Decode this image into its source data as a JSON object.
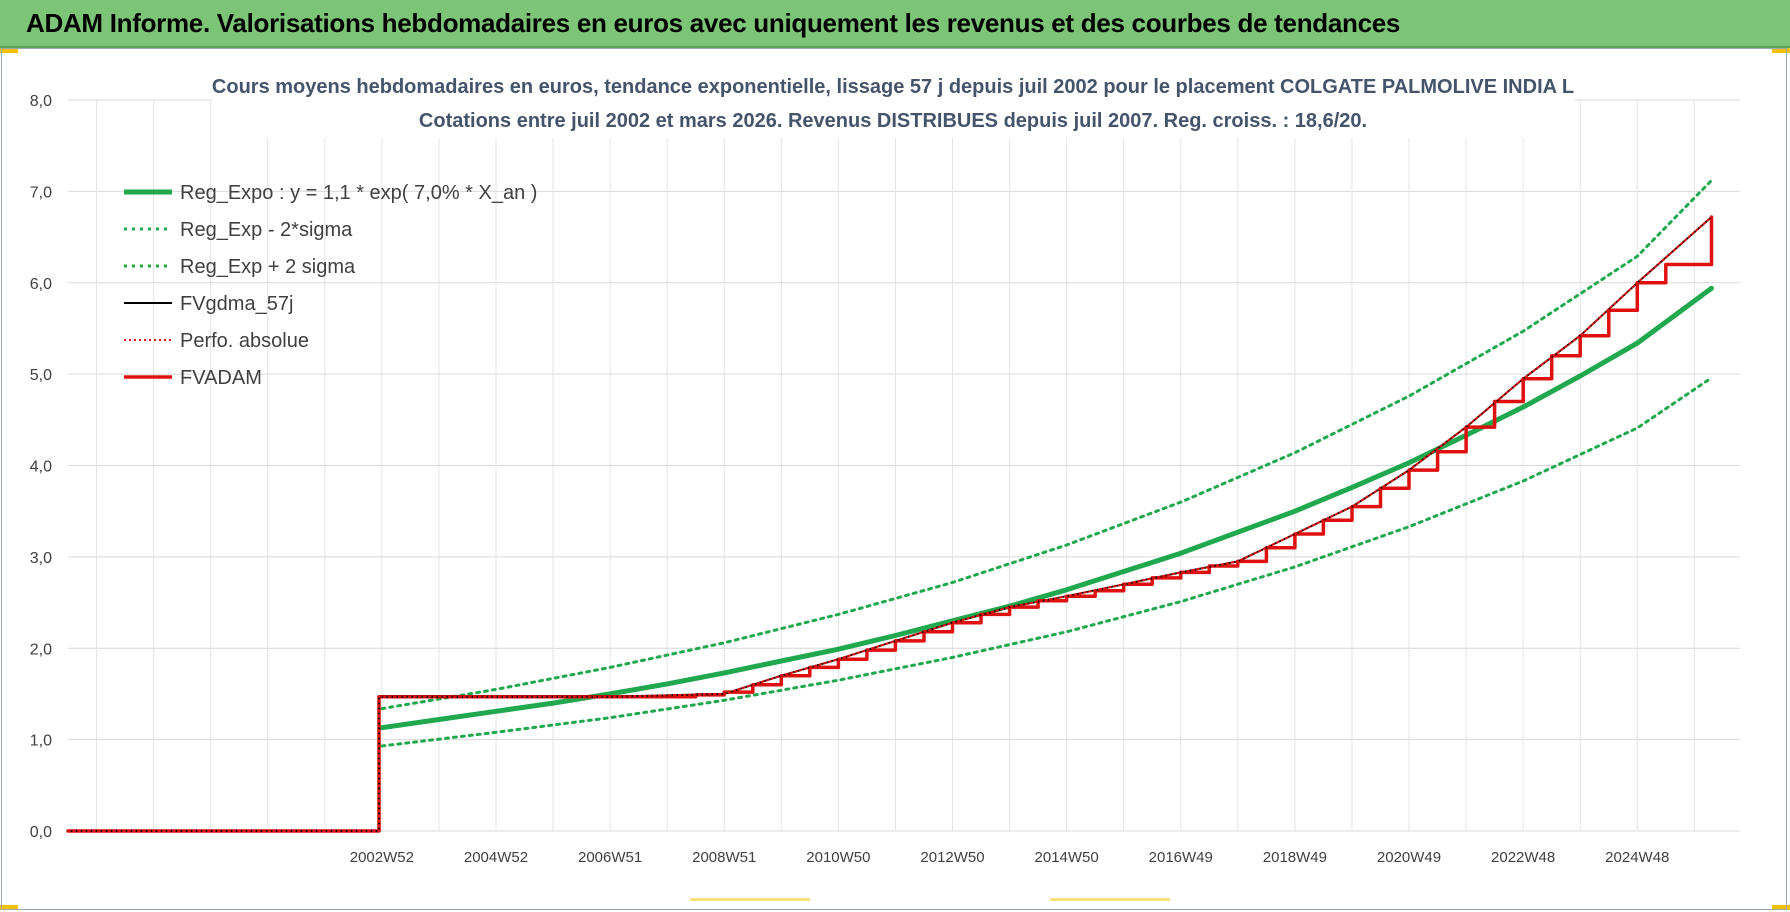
{
  "header": {
    "title": "ADAM Informe. Valorisations hebdomadaires en euros avec uniquement les revenus et des courbes de tendances"
  },
  "chart_data": {
    "type": "line",
    "title_line1": "Cours moyens hebdomadaires en euros, tendance exponentielle, lissage 57 j depuis juil 2002 pour le placement COLGATE PALMOLIVE INDIA L",
    "title_line2": "Cotations entre juil 2002 et mars 2026. Revenus DISTRIBUES depuis juil 2007. Reg. croiss. : 18,6/20.",
    "xlabel": "",
    "ylabel": "",
    "ylim": [
      0,
      8
    ],
    "xlim": [
      1997.5,
      2026.8
    ],
    "grid": true,
    "legend_position": "top-left",
    "y_ticks": [
      "0,0",
      "1,0",
      "2,0",
      "3,0",
      "4,0",
      "5,0",
      "6,0",
      "7,0",
      "8,0"
    ],
    "x_ticks": [
      {
        "label": "2002W52",
        "x": 2003.0
      },
      {
        "label": "2004W52",
        "x": 2005.0
      },
      {
        "label": "2006W51",
        "x": 2007.0
      },
      {
        "label": "2008W51",
        "x": 2009.0
      },
      {
        "label": "2010W50",
        "x": 2011.0
      },
      {
        "label": "2012W50",
        "x": 2013.0
      },
      {
        "label": "2014W50",
        "x": 2015.0
      },
      {
        "label": "2016W49",
        "x": 2017.0
      },
      {
        "label": "2018W49",
        "x": 2019.0
      },
      {
        "label": "2020W49",
        "x": 2021.0
      },
      {
        "label": "2022W48",
        "x": 2023.0
      },
      {
        "label": "2024W48",
        "x": 2025.0
      }
    ],
    "series": [
      {
        "name": "Reg_Expo : y = 1,1 * exp( 7,0% *  X_an )",
        "color": "#1fa84d",
        "style": "solid-thick",
        "x": [
          2003.0,
          2004.0,
          2005.0,
          2006.0,
          2007.0,
          2008.0,
          2009.0,
          2010.0,
          2011.0,
          2012.0,
          2013.0,
          2014.0,
          2015.0,
          2016.0,
          2017.0,
          2018.0,
          2019.0,
          2020.0,
          2021.0,
          2022.0,
          2023.0,
          2024.0,
          2025.0,
          2026.3
        ],
        "values": [
          1.13,
          1.22,
          1.31,
          1.4,
          1.5,
          1.61,
          1.73,
          1.86,
          1.99,
          2.14,
          2.3,
          2.46,
          2.64,
          2.84,
          3.04,
          3.27,
          3.5,
          3.76,
          4.03,
          4.33,
          4.64,
          4.98,
          5.34,
          5.94
        ]
      },
      {
        "name": "Reg_Exp - 2*sigma",
        "color": "#1fa84d",
        "style": "dotted",
        "x": [
          2003.0,
          2005.0,
          2007.0,
          2009.0,
          2011.0,
          2013.0,
          2015.0,
          2017.0,
          2019.0,
          2021.0,
          2023.0,
          2025.0,
          2026.3
        ],
        "values": [
          0.93,
          1.08,
          1.24,
          1.43,
          1.65,
          1.9,
          2.18,
          2.51,
          2.89,
          3.33,
          3.83,
          4.41,
          4.96
        ]
      },
      {
        "name": "Reg_Exp + 2 sigma",
        "color": "#1fa84d",
        "style": "dotted",
        "x": [
          2003.0,
          2005.0,
          2007.0,
          2009.0,
          2011.0,
          2013.0,
          2015.0,
          2017.0,
          2019.0,
          2021.0,
          2023.0,
          2025.0,
          2026.3
        ],
        "values": [
          1.34,
          1.55,
          1.79,
          2.06,
          2.37,
          2.72,
          3.13,
          3.6,
          4.14,
          4.76,
          5.47,
          6.29,
          7.12
        ]
      },
      {
        "name": "FVgdma_57j",
        "color": "#000000",
        "style": "solid",
        "x": [
          1997.5,
          2002.95,
          2002.95,
          2007.0,
          2009.0,
          2010.0,
          2011.0,
          2012.0,
          2013.0,
          2014.0,
          2015.0,
          2016.0,
          2017.0,
          2018.0,
          2019.0,
          2020.0,
          2021.0,
          2022.0,
          2023.0,
          2024.0,
          2025.0,
          2026.3
        ],
        "values": [
          0.0,
          0.0,
          1.47,
          1.47,
          1.5,
          1.7,
          1.88,
          2.08,
          2.28,
          2.45,
          2.57,
          2.7,
          2.83,
          2.95,
          3.25,
          3.55,
          3.95,
          4.42,
          4.95,
          5.42,
          6.0,
          6.72
        ]
      },
      {
        "name": "Perfo. absolue",
        "color": "#e01010",
        "style": "dotted-thin",
        "x": [
          1997.5,
          2002.95,
          2002.95,
          2007.0,
          2009.0,
          2010.0,
          2011.0,
          2012.0,
          2013.0,
          2014.0,
          2015.0,
          2016.0,
          2017.0,
          2018.0,
          2019.0,
          2020.0,
          2021.0,
          2022.0,
          2023.0,
          2024.0,
          2025.0,
          2026.3
        ],
        "values": [
          0.0,
          0.0,
          1.47,
          1.47,
          1.5,
          1.7,
          1.88,
          2.08,
          2.28,
          2.45,
          2.57,
          2.7,
          2.83,
          2.95,
          3.25,
          3.55,
          3.95,
          4.42,
          4.95,
          5.42,
          6.0,
          6.72
        ]
      },
      {
        "name": "FVADAM",
        "color": "#e01010",
        "style": "solid-thick-steps",
        "x": [
          1997.5,
          2002.95,
          2002.95,
          2007.0,
          2008.5,
          2009.0,
          2009.5,
          2010.0,
          2010.5,
          2011.0,
          2011.5,
          2012.0,
          2012.5,
          2013.0,
          2013.5,
          2014.0,
          2014.5,
          2015.0,
          2015.5,
          2016.0,
          2016.5,
          2017.0,
          2017.5,
          2018.0,
          2018.5,
          2019.0,
          2019.5,
          2020.0,
          2020.5,
          2021.0,
          2021.5,
          2022.0,
          2022.5,
          2023.0,
          2023.5,
          2024.0,
          2024.5,
          2025.0,
          2025.5,
          2026.3
        ],
        "values": [
          0.0,
          0.0,
          1.47,
          1.47,
          1.49,
          1.52,
          1.6,
          1.7,
          1.79,
          1.88,
          1.98,
          2.08,
          2.18,
          2.28,
          2.37,
          2.45,
          2.52,
          2.57,
          2.63,
          2.7,
          2.77,
          2.83,
          2.9,
          2.95,
          3.1,
          3.25,
          3.4,
          3.55,
          3.75,
          3.95,
          4.15,
          4.42,
          4.7,
          4.95,
          5.2,
          5.42,
          5.7,
          6.0,
          6.2,
          6.72
        ]
      }
    ]
  }
}
